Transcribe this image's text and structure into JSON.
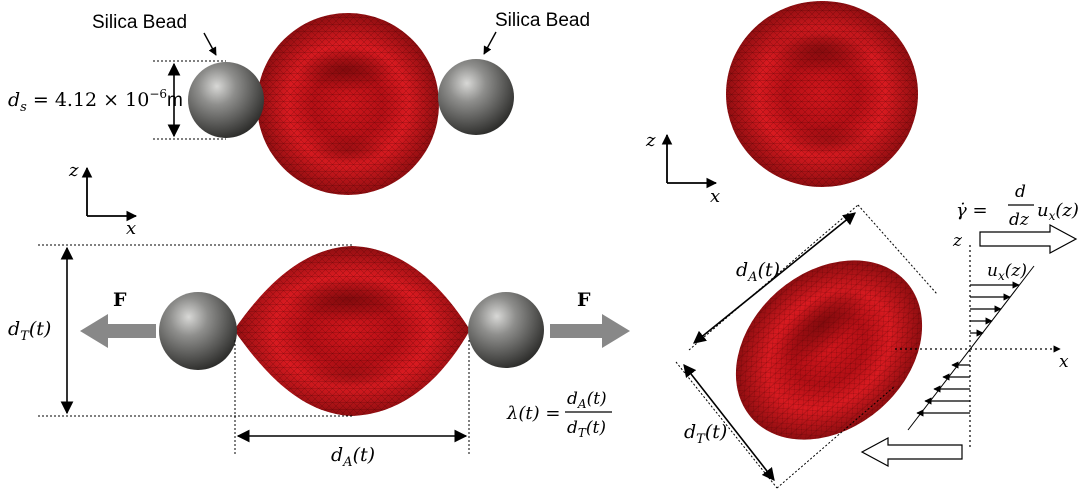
{
  "labels": {
    "bead_left": "Silica Bead",
    "bead_right": "Silica Bead",
    "ds_var": "d",
    "ds_sub": "s",
    "ds_eq": " = 4.12 × 10",
    "ds_exp": "−6",
    "ds_unit": "m",
    "axis_z": "z",
    "axis_x": "x",
    "force": "F",
    "dT_var": "d",
    "dT_sub": "T",
    "dT_arg": "(t)",
    "dA_var": "d",
    "dA_sub": "A",
    "dA_arg": "(t)",
    "lambda_lhs": "λ(t) =",
    "shear_lhs": "γ̇ =",
    "shear_num": "d",
    "shear_den": "dz",
    "shear_u": "u",
    "shear_u_sub": "x",
    "shear_u_arg": "(z)",
    "ux_var": "u",
    "ux_sub": "x",
    "ux_arg": "(z)"
  },
  "colors": {
    "cell": "#c8141a",
    "cell_dark": "#7a0a0c",
    "bead": "#8a8a88",
    "bead_dark": "#3e3e3c",
    "arrow_grey": "#888888",
    "ink": "#000000"
  }
}
